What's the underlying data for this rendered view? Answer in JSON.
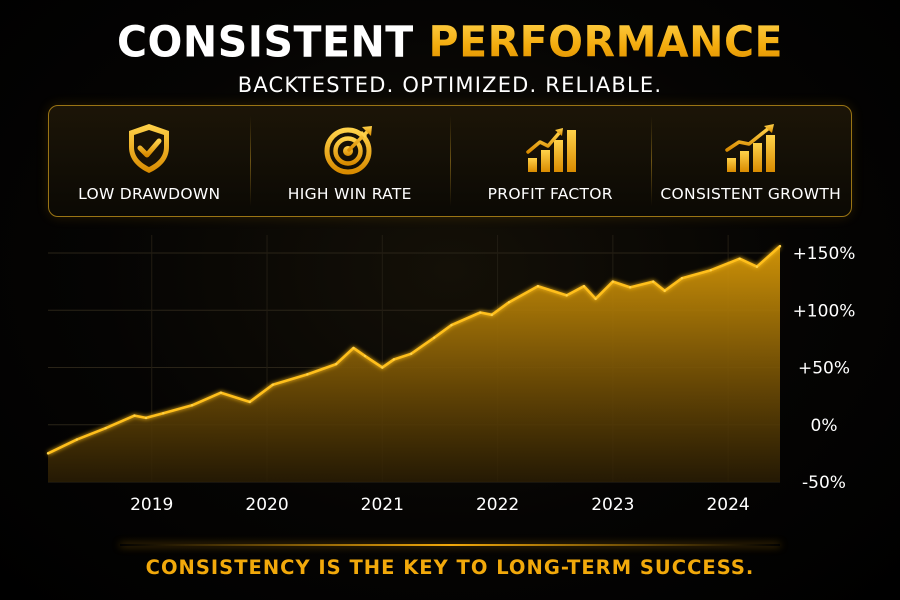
{
  "title": {
    "part1": "CONSISTENT",
    "part2": "PERFORMANCE"
  },
  "subtitle": "BACKTESTED. OPTIMIZED. RELIABLE.",
  "features": [
    {
      "label": "LOW DRAWDOWN",
      "icon": "shield-check-icon"
    },
    {
      "label": "HIGH WIN RATE",
      "icon": "target-arrow-icon"
    },
    {
      "label": "PROFIT FACTOR",
      "icon": "bar-chart-up-icon"
    },
    {
      "label": "CONSISTENT GROWTH",
      "icon": "bar-chart-growth-icon"
    }
  ],
  "footer": "CONSISTENCY IS THE KEY TO LONG-TERM SUCCESS.",
  "colors": {
    "accent": "#f2a90b",
    "background": "#000000",
    "text": "#ffffff"
  },
  "chart_data": {
    "type": "area",
    "title": "",
    "xlabel": "",
    "ylabel": "",
    "x_ticks": [
      "2019",
      "2020",
      "2021",
      "2022",
      "2023",
      "2024"
    ],
    "y_ticks": [
      "+150%",
      "+100%",
      "+50%",
      "0%",
      "-50%"
    ],
    "y_tick_values": [
      150,
      100,
      50,
      0,
      -50
    ],
    "ylim": [
      -50,
      150
    ],
    "xlim": [
      2018.25,
      2024.6
    ],
    "grid": true,
    "series": [
      {
        "x": [
          2018.25,
          2018.5,
          2018.75,
          2019.0,
          2019.1,
          2019.25,
          2019.5,
          2019.75,
          2020.0,
          2020.2,
          2020.5,
          2020.75,
          2020.9,
          2021.0,
          2021.15,
          2021.25,
          2021.4,
          2021.6,
          2021.75,
          2022.0,
          2022.1,
          2022.25,
          2022.5,
          2022.75,
          2022.9,
          2023.0,
          2023.15,
          2023.3,
          2023.5,
          2023.6,
          2023.75,
          2024.0,
          2024.25,
          2024.4,
          2024.6
        ],
        "y": [
          -25,
          -13,
          -3,
          8,
          6,
          10,
          17,
          28,
          20,
          35,
          44,
          53,
          67,
          60,
          50,
          57,
          62,
          76,
          87,
          98,
          96,
          107,
          121,
          113,
          121,
          110,
          125,
          120,
          125,
          117,
          128,
          135,
          145,
          138,
          156
        ]
      }
    ]
  }
}
